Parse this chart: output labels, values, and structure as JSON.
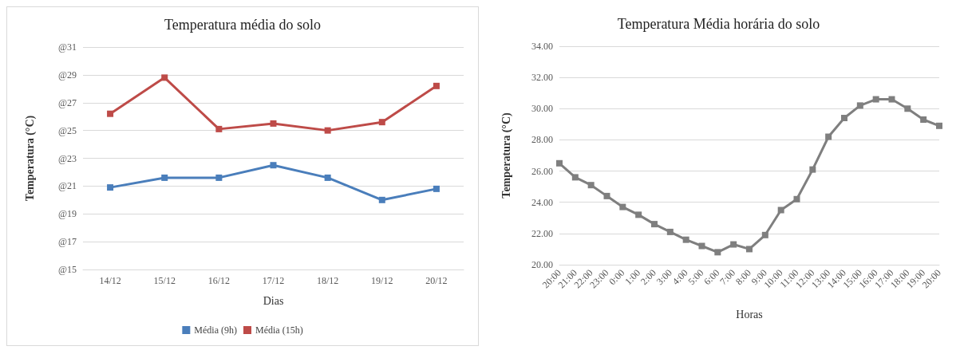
{
  "chart_data": [
    {
      "type": "line",
      "title": "Temperatura média do solo",
      "xlabel": "Dias",
      "ylabel": "Temperatura (°C)",
      "categories": [
        "14/12",
        "15/12",
        "16/12",
        "17/12",
        "18/12",
        "19/12",
        "20/12"
      ],
      "series": [
        {
          "name": "Média (9h)",
          "color": "#4a7ebb",
          "values": [
            20.9,
            21.6,
            21.6,
            22.5,
            21.6,
            20.0,
            20.8
          ]
        },
        {
          "name": "Média (15h)",
          "color": "#be4b48",
          "values": [
            26.2,
            28.8,
            25.1,
            25.5,
            25.0,
            25.6,
            28.2
          ]
        }
      ],
      "ylim": [
        15,
        31
      ],
      "yticks": [
        {
          "value": 15,
          "label": "@15"
        },
        {
          "value": 17,
          "label": "@17"
        },
        {
          "value": 19,
          "label": "@19"
        },
        {
          "value": 21,
          "label": "@21"
        },
        {
          "value": 23,
          "label": "@23"
        },
        {
          "value": 25,
          "label": "@25"
        },
        {
          "value": 27,
          "label": "@27"
        },
        {
          "value": 29,
          "label": "@29"
        },
        {
          "value": 31,
          "label": "@31"
        }
      ],
      "grid": "y",
      "legend": "bottom",
      "marker": "square",
      "line_style": "solid"
    },
    {
      "type": "line",
      "title": "Temperatura Média horária do solo",
      "xlabel": "Horas",
      "ylabel": "Temperatura (°C)",
      "categories": [
        "20:00",
        "21:00",
        "22:00",
        "23:00",
        "0:00",
        "1:00",
        "2:00",
        "3:00",
        "4:00",
        "5:00",
        "6:00",
        "7:00",
        "8:00",
        "9:00",
        "10:00",
        "11:00",
        "12:00",
        "13:00",
        "14:00",
        "15:00",
        "16:00",
        "17:00",
        "18:00",
        "19:00",
        "20:00"
      ],
      "series": [
        {
          "color": "#7f7f7f",
          "values": [
            26.5,
            25.6,
            25.1,
            24.4,
            23.7,
            23.2,
            22.6,
            22.1,
            21.6,
            21.2,
            20.8,
            21.3,
            21.0,
            21.9,
            23.5,
            24.2,
            26.1,
            28.2,
            29.4,
            30.2,
            30.6,
            30.6,
            30.0,
            29.3,
            28.9
          ]
        }
      ],
      "ylim": [
        20,
        34
      ],
      "yticks": [
        {
          "value": 20,
          "label": "20.00"
        },
        {
          "value": 22,
          "label": "22.00"
        },
        {
          "value": 24,
          "label": "24.00"
        },
        {
          "value": 26,
          "label": "26.00"
        },
        {
          "value": 28,
          "label": "28.00"
        },
        {
          "value": 30,
          "label": "30.00"
        },
        {
          "value": 32,
          "label": "32.00"
        },
        {
          "value": 34,
          "label": "34.00"
        }
      ],
      "grid": "y",
      "marker": "square",
      "line_style": "solid"
    }
  ]
}
